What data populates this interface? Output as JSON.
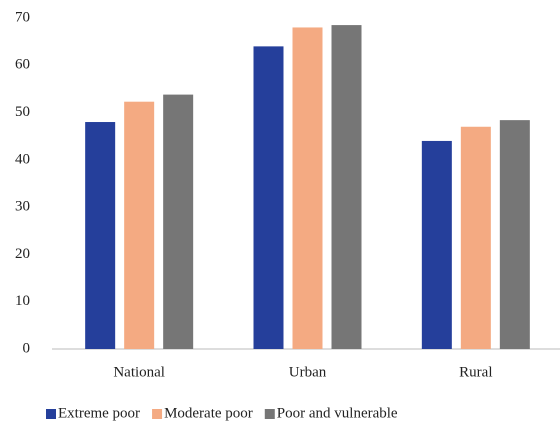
{
  "chart_data": {
    "type": "bar",
    "categories": [
      "National",
      "Urban",
      "Rural"
    ],
    "series": [
      {
        "name": "Extreme poor",
        "color": "#253f9b",
        "values": [
          48,
          64,
          44
        ]
      },
      {
        "name": "Moderate poor",
        "color": "#f4aa82",
        "values": [
          52.3,
          68,
          47
        ]
      },
      {
        "name": "Poor and vulnerable",
        "color": "#767676",
        "values": [
          53.8,
          68.5,
          48.4
        ]
      }
    ],
    "ylim": [
      0,
      70
    ],
    "yticks": [
      0,
      10,
      20,
      30,
      40,
      50,
      60,
      70
    ],
    "grid": false,
    "legend": "bottom"
  }
}
